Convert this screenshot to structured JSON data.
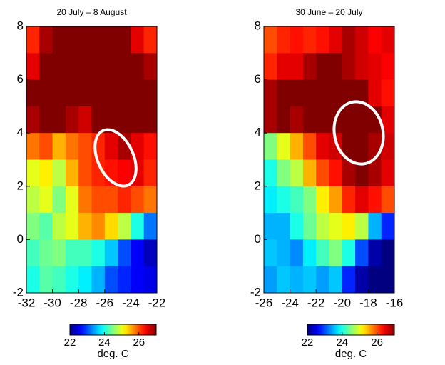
{
  "chart_data": [
    {
      "type": "heatmap",
      "title": "20 July – 8 August",
      "colormap": "jet",
      "x": [
        -31.5,
        -30.5,
        -29.5,
        -28.5,
        -27.5,
        -26.5,
        -25.5,
        -24.5,
        -23.5,
        -22.5
      ],
      "y": [
        7.5,
        6.5,
        5.5,
        4.5,
        3.5,
        2.5,
        1.5,
        0.5,
        -0.5,
        -1.5
      ],
      "xlim": [
        -32,
        -22
      ],
      "ylim": [
        -2,
        8
      ],
      "xticks": [
        -32,
        -30,
        -28,
        -26,
        -24,
        -22
      ],
      "yticks": [
        -2,
        0,
        2,
        4,
        6,
        8
      ],
      "z": [
        [
          26.2,
          26.8,
          27,
          27,
          27,
          27,
          27,
          27,
          26.5,
          26.2
        ],
        [
          26.5,
          27,
          27,
          27,
          27,
          27,
          27,
          27,
          27,
          26.8
        ],
        [
          27,
          27,
          27,
          27,
          27,
          27,
          27,
          27,
          27,
          27
        ],
        [
          26.8,
          27,
          27,
          26.8,
          26.6,
          27,
          27,
          27,
          27,
          27
        ],
        [
          25.8,
          26,
          25.5,
          25.8,
          26,
          26.2,
          26.5,
          26.8,
          26.5,
          26.3
        ],
        [
          25,
          25.2,
          24.8,
          25.5,
          26,
          26.2,
          26.3,
          26.4,
          26.5,
          26.2
        ],
        [
          24.8,
          25,
          24.5,
          25,
          25.8,
          26,
          26,
          26.2,
          26,
          25.8
        ],
        [
          24.5,
          24.3,
          24.8,
          25,
          25.5,
          25.7,
          25.3,
          24.8,
          24,
          23.2
        ],
        [
          24.2,
          24.4,
          24.5,
          24.2,
          24.2,
          24,
          23.6,
          23,
          22.6,
          22.3
        ],
        [
          24,
          24.3,
          24.2,
          24,
          23.8,
          23.5,
          23,
          22.8,
          22.6,
          22.5
        ]
      ],
      "clim": [
        22,
        27
      ],
      "cticks": [
        22,
        24,
        26
      ],
      "colorbar_label": "deg. C"
    },
    {
      "type": "heatmap",
      "title": "30 June – 20 July",
      "colormap": "jet",
      "x": [
        -25.5,
        -24.5,
        -23.5,
        -22.5,
        -21.5,
        -20.5,
        -19.5,
        -18.5,
        -17.5,
        -16.5
      ],
      "y": [
        7.5,
        6.5,
        5.5,
        4.5,
        3.5,
        2.5,
        1.5,
        0.5,
        -0.5,
        -1.5
      ],
      "xlim": [
        -26,
        -16
      ],
      "ylim": [
        -2,
        8
      ],
      "xticks": [
        -26,
        -24,
        -22,
        -20,
        -18,
        -16
      ],
      "yticks": [
        -2,
        0,
        2,
        4,
        6,
        8
      ],
      "z": [
        [
          26,
          26.2,
          26.3,
          26.2,
          26.3,
          26.5,
          26.8,
          26.6,
          26.4,
          26.5
        ],
        [
          26.2,
          26.5,
          26.5,
          26.8,
          27,
          27,
          26.8,
          26.6,
          26.5,
          26.4
        ],
        [
          26.8,
          27,
          27,
          27,
          27,
          27,
          27,
          27,
          26.5,
          26.3
        ],
        [
          26.8,
          27,
          26.8,
          27,
          27,
          27,
          27,
          27,
          27,
          26.5
        ],
        [
          24.5,
          25,
          25.5,
          26,
          26.5,
          26.6,
          27,
          27,
          26.8,
          26.6
        ],
        [
          24,
          24.5,
          24.8,
          25.5,
          26,
          26.3,
          26.8,
          27,
          26.8,
          26.5
        ],
        [
          23.8,
          24,
          24.2,
          24.5,
          25.2,
          25.6,
          26.2,
          26.5,
          26.3,
          26
        ],
        [
          23.5,
          23.5,
          24,
          24.4,
          24.8,
          25,
          25.2,
          24.8,
          23.5,
          22.8
        ],
        [
          23.6,
          23.5,
          23.3,
          23.8,
          24.2,
          24.5,
          24,
          23,
          22.2,
          22
        ],
        [
          23.4,
          23.6,
          23.5,
          23.6,
          23.4,
          23.6,
          22.8,
          22.2,
          22,
          22
        ]
      ],
      "clim": [
        22,
        27
      ],
      "cticks": [
        22,
        24,
        26
      ],
      "colorbar_label": "deg. C"
    }
  ]
}
